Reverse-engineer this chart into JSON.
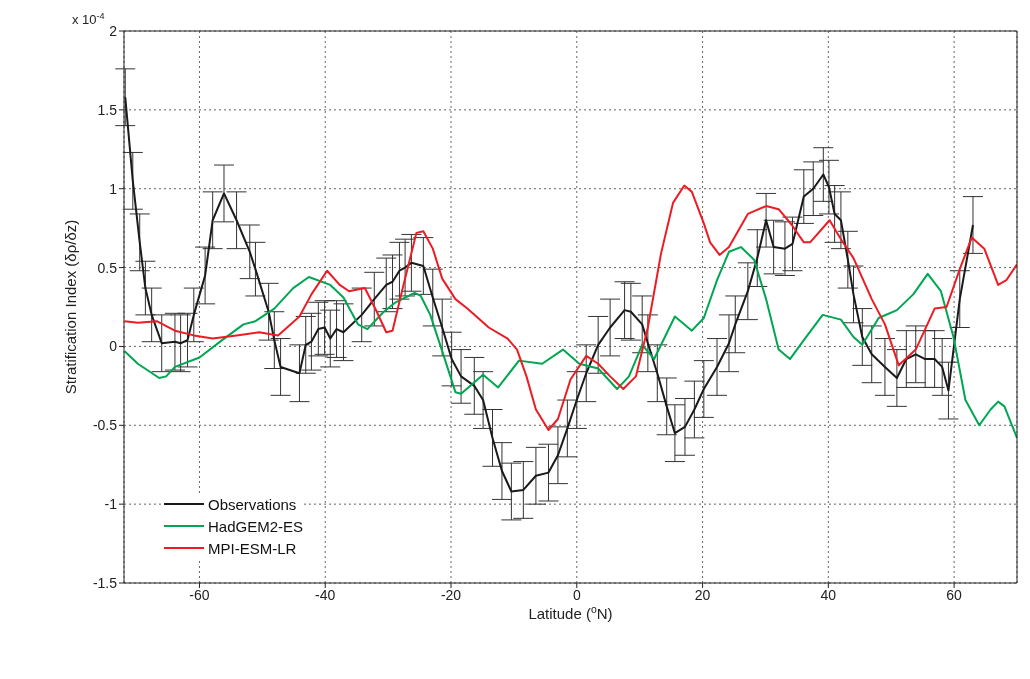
{
  "chart_data": {
    "type": "line",
    "xlabel": "Latitude ($^{o}$N)",
    "ylabel": "Stratification Index (δρ/δz)",
    "annotations": [
      "x 10$^{-4}$"
    ],
    "xlim": [
      -72,
      70
    ],
    "xticks": [
      -60,
      -40,
      -20,
      0,
      20,
      40,
      60
    ],
    "ylim": [
      -1.5,
      2
    ],
    "yticks": [
      -1.5,
      -1,
      -0.5,
      0,
      0.5,
      1,
      1.5,
      2
    ],
    "grid": true,
    "legend": "bottom left",
    "marker": "none",
    "line_style": "solid",
    "series": [
      {
        "name": "Observations",
        "color": "#1a1a1a",
        "x": [
          -71.8,
          -70.6,
          -69.5,
          -68.6,
          -67.6,
          -66,
          -63.9,
          -63,
          -61.9,
          -60.9,
          -59.1,
          -57.9,
          -56.1,
          -54.1,
          -52,
          -51.1,
          -49,
          -48.1,
          -47.1,
          -44.1,
          -43.1,
          -42.2,
          -41.1,
          -40.1,
          -39.2,
          -38.2,
          -37.1,
          -34.2,
          -32.2,
          -30.3,
          -29.3,
          -28.2,
          -27.3,
          -26.3,
          -24.4,
          -22.9,
          -21.4,
          -19.9,
          -18.4,
          -16.3,
          -14.9,
          -13.4,
          -11.9,
          -10.4,
          -8.5,
          -6.5,
          -4.5,
          -3,
          -1.5,
          0,
          1.5,
          3.4,
          5.3,
          7.6,
          8.6,
          10.4,
          11.3,
          12.8,
          14.3,
          15.6,
          17.2,
          18.7,
          20.2,
          22.3,
          24.2,
          25.2,
          27.2,
          28.7,
          30.1,
          31.3,
          33.1,
          34.3,
          36.1,
          37.6,
          39.2,
          40.1,
          41,
          42,
          43.1,
          44,
          45.4,
          46.9,
          49,
          50.9,
          52.4,
          53.9,
          55.4,
          56.9,
          58.1,
          59.1,
          60.9,
          63
        ],
        "values": [
          1.58,
          1.05,
          0.66,
          0.37,
          0.2,
          0.02,
          0.03,
          0.02,
          0.04,
          0.2,
          0.45,
          0.8,
          0.97,
          0.8,
          0.6,
          0.49,
          0.22,
          0.04,
          -0.13,
          -0.17,
          0.01,
          0.03,
          0.11,
          0.12,
          0.05,
          0.11,
          0.09,
          0.2,
          0.3,
          0.39,
          0.41,
          0.48,
          0.5,
          0.53,
          0.51,
          0.31,
          0.12,
          -0.08,
          -0.19,
          -0.25,
          -0.34,
          -0.58,
          -0.79,
          -0.92,
          -0.91,
          -0.82,
          -0.8,
          -0.69,
          -0.52,
          -0.34,
          -0.17,
          0.01,
          0.12,
          0.23,
          0.22,
          0.14,
          0.02,
          -0.17,
          -0.38,
          -0.55,
          -0.51,
          -0.4,
          -0.27,
          -0.13,
          0.02,
          0.14,
          0.35,
          0.56,
          0.8,
          0.63,
          0.62,
          0.65,
          0.95,
          1,
          1.09,
          1.01,
          0.84,
          0.8,
          0.55,
          0.33,
          0.06,
          -0.05,
          -0.13,
          -0.2,
          -0.08,
          -0.05,
          -0.08,
          -0.08,
          -0.13,
          -0.28,
          0.3,
          0.77
        ],
        "errors": [
          0.18,
          0.18,
          0.18,
          0.17,
          0.17,
          0.18,
          0.18,
          0.18,
          0.17,
          0.17,
          0.18,
          0.18,
          0.18,
          0.18,
          0.17,
          0.17,
          0.18,
          0.18,
          0.18,
          0.18,
          0.18,
          0.18,
          0.17,
          0.17,
          0.18,
          0.18,
          0.18,
          0.17,
          0.17,
          0.17,
          0.17,
          0.18,
          0.18,
          0.18,
          0.18,
          0.18,
          0.18,
          0.17,
          0.17,
          0.18,
          0.18,
          0.18,
          0.18,
          0.18,
          0.18,
          0.18,
          0.18,
          0.18,
          0.18,
          0.18,
          0.18,
          0.18,
          0.18,
          0.18,
          0.18,
          0.18,
          0.18,
          0.18,
          0.18,
          0.18,
          0.18,
          0.18,
          0.18,
          0.18,
          0.18,
          0.18,
          0.18,
          0.18,
          0.17,
          0.17,
          0.17,
          0.17,
          0.17,
          0.17,
          0.17,
          0.17,
          0.18,
          0.18,
          0.18,
          0.18,
          0.18,
          0.18,
          0.18,
          0.18,
          0.18,
          0.18,
          0.18,
          0.18,
          0.18,
          0.18,
          0.18,
          0.18
        ]
      },
      {
        "name": "HadGEM2-ES",
        "color": "#00a651",
        "x": [
          -71.9,
          -69.8,
          -66.4,
          -65.3,
          -63.9,
          -60,
          -56.4,
          -53,
          -51.1,
          -48.1,
          -45.1,
          -42.6,
          -39.2,
          -37.1,
          -34.8,
          -33.3,
          -30.7,
          -28.8,
          -25.8,
          -24.8,
          -23.3,
          -21.4,
          -19.3,
          -18.4,
          -14.9,
          -12.5,
          -9.2,
          -5.5,
          -2.2,
          0.4,
          3.4,
          6.4,
          8.3,
          10.4,
          12.3,
          15.6,
          18.3,
          20.2,
          22.3,
          24.2,
          26.1,
          28.2,
          30.1,
          32.1,
          33.9,
          36.1,
          39.1,
          42,
          44,
          45.4,
          48,
          50.9,
          53.5,
          55.8,
          57.9,
          59.9,
          61.8,
          64,
          65.8,
          67,
          68,
          70
        ],
        "values": [
          -0.03,
          -0.11,
          -0.2,
          -0.19,
          -0.13,
          -0.07,
          0.04,
          0.14,
          0.16,
          0.24,
          0.37,
          0.44,
          0.39,
          0.31,
          0.14,
          0.11,
          0.22,
          0.28,
          0.34,
          0.32,
          0.2,
          -0.03,
          -0.29,
          -0.3,
          -0.18,
          -0.26,
          -0.09,
          -0.11,
          -0.02,
          -0.11,
          -0.14,
          -0.27,
          -0.19,
          0.01,
          -0.08,
          0.19,
          0.1,
          0.18,
          0.42,
          0.6,
          0.63,
          0.55,
          0.3,
          -0.02,
          -0.08,
          0.04,
          0.2,
          0.17,
          0.06,
          0.01,
          0.18,
          0.23,
          0.33,
          0.46,
          0.35,
          0.06,
          -0.34,
          -0.5,
          -0.4,
          -0.35,
          -0.38,
          -0.58
        ]
      },
      {
        "name": "MPI-ESM-LR",
        "color": "#ed1c24",
        "x": [
          -71.9,
          -69.8,
          -66.8,
          -63.9,
          -60.9,
          -57.9,
          -54.1,
          -50.5,
          -47.5,
          -44.1,
          -42.2,
          -39.7,
          -37.7,
          -36.2,
          -33.7,
          -31.8,
          -30.3,
          -29.3,
          -27.8,
          -25.5,
          -24.4,
          -22.9,
          -21.4,
          -19.3,
          -17.4,
          -14,
          -11,
          -9.5,
          -8,
          -6.5,
          -4.5,
          -3,
          -1,
          1.5,
          3.4,
          5.3,
          7.4,
          9.4,
          11.3,
          13.4,
          15.3,
          17.1,
          18.3,
          20.2,
          21.2,
          22.7,
          24.2,
          27.2,
          30.1,
          32.1,
          34.2,
          36.1,
          37.1,
          40.2,
          42,
          44,
          46.9,
          49,
          51.2,
          53.9,
          56.9,
          58.8,
          60.9,
          62.8,
          64.8,
          67,
          68.3,
          70
        ],
        "values": [
          0.16,
          0.15,
          0.16,
          0.1,
          0.07,
          0.05,
          0.07,
          0.09,
          0.07,
          0.19,
          0.33,
          0.48,
          0.39,
          0.35,
          0.37,
          0.22,
          0.09,
          0.1,
          0.35,
          0.72,
          0.73,
          0.62,
          0.43,
          0.3,
          0.24,
          0.12,
          0.05,
          -0.02,
          -0.19,
          -0.4,
          -0.53,
          -0.46,
          -0.21,
          -0.06,
          -0.11,
          -0.19,
          -0.27,
          -0.19,
          0.12,
          0.59,
          0.91,
          1.02,
          0.98,
          0.78,
          0.66,
          0.58,
          0.63,
          0.84,
          0.89,
          0.87,
          0.77,
          0.66,
          0.66,
          0.8,
          0.68,
          0.56,
          0.3,
          0.14,
          -0.12,
          -0.02,
          0.24,
          0.25,
          0.49,
          0.69,
          0.62,
          0.39,
          0.42,
          0.52
        ]
      }
    ]
  }
}
